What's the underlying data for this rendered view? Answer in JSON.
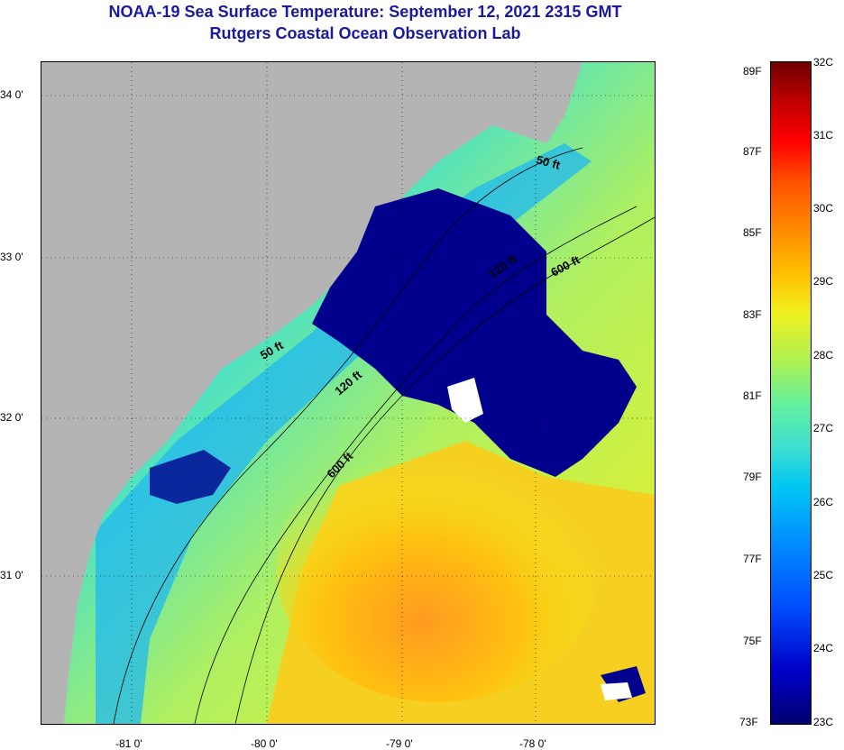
{
  "header": {
    "title": "NOAA-19 Sea Surface Temperature:  September 12, 2021 2315 GMT",
    "subtitle": "Rutgers Coastal Ocean Observation Lab"
  },
  "map": {
    "lat_ticks": [
      "34 0'",
      "33 0'",
      "32 0'",
      "31 0'"
    ],
    "lon_ticks": [
      "-81 0'",
      "-80 0'",
      "-79 0'",
      "-78 0'"
    ],
    "contours": {
      "c50_upper": "50 ft",
      "c50_lower": "50 ft",
      "c120_upper": "120 ft",
      "c120_lower": "120 ft",
      "c600_upper": "600 ft",
      "c600_lower": "600 ft"
    }
  },
  "colorbar": {
    "fahrenheit": [
      "89F",
      "87F",
      "85F",
      "83F",
      "81F",
      "79F",
      "77F",
      "75F",
      "73F"
    ],
    "celsius": [
      "32C",
      "31C",
      "30C",
      "29C",
      "28C",
      "27C",
      "26C",
      "25C",
      "24C",
      "23C"
    ]
  },
  "colors": {
    "land": "#b4b4b4",
    "cloud": "#00008c",
    "title": "#1a1aa0"
  }
}
